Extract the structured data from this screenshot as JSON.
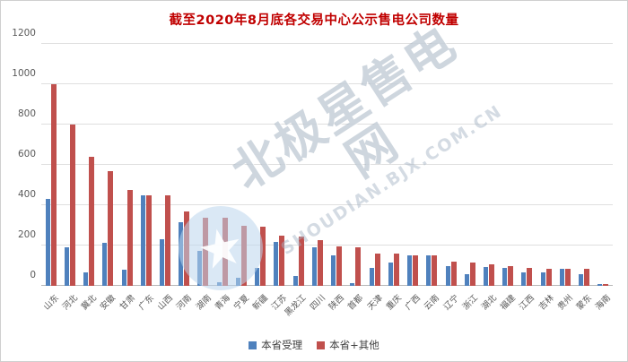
{
  "chart_data": {
    "type": "bar",
    "title": "截至2020年8月底各交易中心公示售电公司数量",
    "categories": [
      "山东",
      "河北",
      "冀北",
      "安徽",
      "甘肃",
      "广东",
      "山西",
      "河南",
      "湖南",
      "青海",
      "宁夏",
      "新疆",
      "江苏",
      "黑龙江",
      "四川",
      "陕西",
      "首都",
      "天津",
      "重庆",
      "广西",
      "云南",
      "辽宁",
      "浙江",
      "湖北",
      "福建",
      "江西",
      "吉林",
      "贵州",
      "蒙东",
      "海南"
    ],
    "series": [
      {
        "name": "本省受理",
        "color": "#4f81bd",
        "values": [
          430,
          190,
          65,
          215,
          80,
          450,
          230,
          315,
          175,
          20,
          40,
          90,
          220,
          50,
          190,
          150,
          15,
          90,
          115,
          150,
          150,
          100,
          60,
          95,
          90,
          65,
          65,
          85,
          60,
          10
        ]
      },
      {
        "name": "本省+其他",
        "color": "#c0504d",
        "values": [
          1000,
          800,
          640,
          570,
          475,
          450,
          450,
          370,
          340,
          340,
          300,
          295,
          250,
          245,
          225,
          195,
          190,
          160,
          160,
          150,
          150,
          120,
          115,
          105,
          100,
          88,
          86,
          85,
          85,
          10
        ]
      }
    ],
    "ylim": [
      0,
      1200
    ],
    "yticks": [
      0,
      200,
      400,
      600,
      800,
      1000,
      1200
    ],
    "grid": true,
    "legend_position": "bottom"
  },
  "watermark": {
    "brand": "北极星售电网",
    "url": "SHOUDIAN.BJX.COM.CN",
    "logo": "star-badge"
  },
  "colors": {
    "title": "#c00000",
    "axis_text": "#595959",
    "gridline": "#dfdfdf",
    "series_blue": "#4f81bd",
    "series_red": "#c0504d"
  }
}
